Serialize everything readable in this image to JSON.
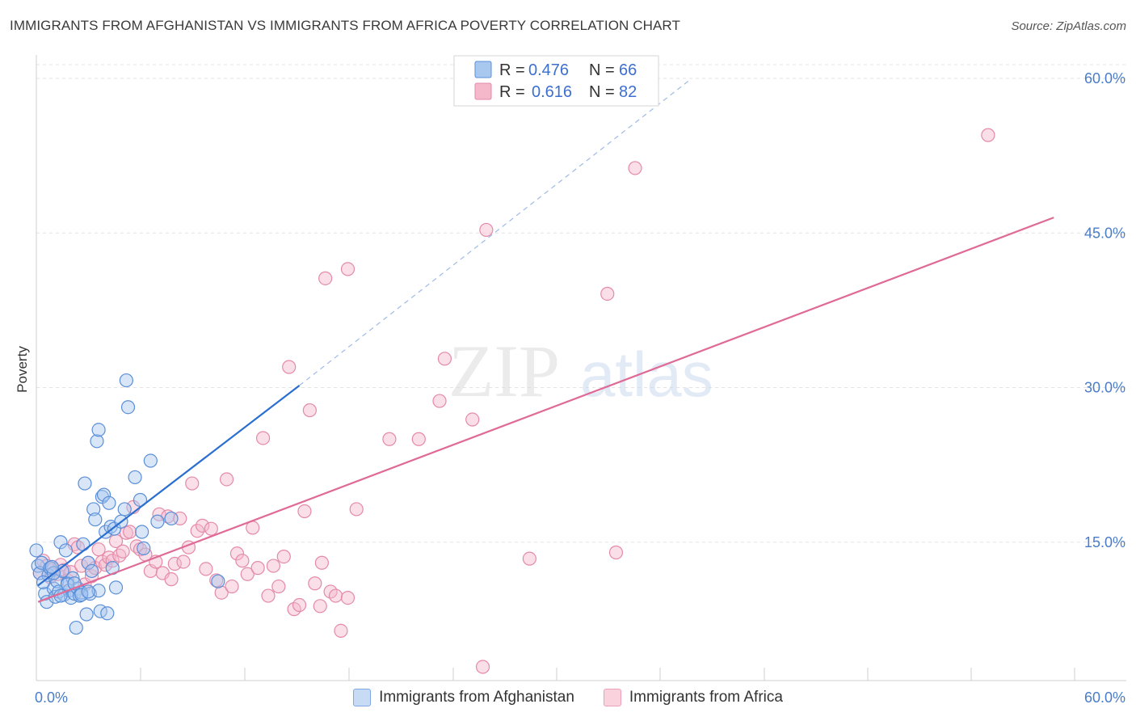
{
  "title": "IMMIGRANTS FROM AFGHANISTAN VS IMMIGRANTS FROM AFRICA POVERTY CORRELATION CHART",
  "source": "Source: ZipAtlas.com",
  "watermark": {
    "zip": "ZIP",
    "atlas": "atlas"
  },
  "colors": {
    "blue_fill": "#a8c8f0",
    "blue_stroke": "#5a8fd8",
    "blue_line": "#2a6fd0",
    "pink_fill": "#f5b8cb",
    "pink_stroke": "#e48aa8",
    "pink_line": "#e06a96",
    "grid": "#e3e3e3",
    "tick_text": "#4a7cc9"
  },
  "chart_data": {
    "type": "scatter",
    "title": "IMMIGRANTS FROM AFGHANISTAN VS IMMIGRANTS FROM AFRICA POVERTY CORRELATION CHART",
    "xlabel": "",
    "ylabel": "Poverty",
    "xlim": [
      0,
      60
    ],
    "ylim": [
      0,
      60
    ],
    "x_tick_labels": {
      "min": "0.0%",
      "max": "60.0%"
    },
    "y_tick_labels": [
      "60.0%",
      "45.0%",
      "30.0%",
      "15.0%"
    ],
    "y_ticks": [
      60,
      45,
      30,
      15
    ],
    "grid": true,
    "legend_stats": [
      {
        "r_label": "R =",
        "r_value": "0.476",
        "n_label": "N =",
        "n_value": "66"
      },
      {
        "r_label": "R =",
        "r_value": "0.616",
        "n_label": "N =",
        "n_value": "82"
      }
    ],
    "series": [
      {
        "name": "Immigrants from Afghanistan",
        "color": "#a8c8f0",
        "trend": {
          "x0": 0.1,
          "y0": 10.8,
          "x1": 15.2,
          "y1": 30.2,
          "dash_x1": 37.8,
          "dash_y1": 59.9
        },
        "points": [
          [
            0.0,
            14.2
          ],
          [
            0.1,
            12.7
          ],
          [
            0.2,
            12.0
          ],
          [
            0.3,
            13.0
          ],
          [
            0.5,
            10.0
          ],
          [
            0.6,
            9.2
          ],
          [
            0.7,
            11.8
          ],
          [
            0.8,
            12.5
          ],
          [
            1.0,
            10.5
          ],
          [
            1.1,
            9.7
          ],
          [
            1.2,
            11.2
          ],
          [
            1.3,
            10.2
          ],
          [
            1.4,
            15.0
          ],
          [
            1.5,
            12.2
          ],
          [
            1.6,
            9.9
          ],
          [
            1.7,
            14.2
          ],
          [
            1.8,
            11.0
          ],
          [
            1.9,
            10.3
          ],
          [
            2.0,
            9.6
          ],
          [
            2.1,
            11.5
          ],
          [
            2.2,
            10.0
          ],
          [
            2.3,
            6.7
          ],
          [
            2.4,
            10.5
          ],
          [
            2.5,
            9.8
          ],
          [
            2.6,
            10.1
          ],
          [
            2.7,
            14.8
          ],
          [
            2.8,
            20.7
          ],
          [
            2.9,
            8.0
          ],
          [
            3.0,
            13.0
          ],
          [
            3.1,
            10.0
          ],
          [
            3.2,
            12.2
          ],
          [
            3.3,
            18.2
          ],
          [
            3.4,
            17.2
          ],
          [
            3.5,
            24.8
          ],
          [
            3.6,
            10.3
          ],
          [
            3.7,
            8.3
          ],
          [
            3.8,
            19.4
          ],
          [
            3.9,
            19.6
          ],
          [
            4.0,
            16.0
          ],
          [
            4.1,
            8.1
          ],
          [
            4.2,
            18.8
          ],
          [
            4.3,
            16.5
          ],
          [
            4.4,
            12.5
          ],
          [
            4.5,
            16.3
          ],
          [
            4.6,
            10.6
          ],
          [
            4.9,
            17.0
          ],
          [
            5.1,
            18.2
          ],
          [
            5.2,
            30.7
          ],
          [
            5.3,
            28.1
          ],
          [
            5.7,
            21.3
          ],
          [
            6.0,
            19.1
          ],
          [
            6.1,
            16.0
          ],
          [
            6.2,
            14.4
          ],
          [
            6.6,
            22.9
          ],
          [
            7.0,
            17.0
          ],
          [
            7.8,
            17.3
          ],
          [
            10.5,
            11.2
          ],
          [
            1.0,
            12.0
          ],
          [
            1.8,
            10.9
          ],
          [
            2.6,
            9.9
          ],
          [
            1.4,
            9.8
          ],
          [
            3.6,
            25.9
          ],
          [
            3.0,
            10.2
          ],
          [
            0.4,
            11.1
          ],
          [
            0.9,
            12.6
          ],
          [
            2.2,
            11.0
          ]
        ]
      },
      {
        "name": "Immigrants from Africa",
        "color": "#f5b8cb",
        "trend": {
          "x0": 0.1,
          "y0": 9.2,
          "x1": 58.8,
          "y1": 46.5
        },
        "points": [
          [
            0.2,
            12.0
          ],
          [
            0.4,
            13.2
          ],
          [
            0.6,
            12.7
          ],
          [
            0.8,
            11.6
          ],
          [
            1.0,
            12.4
          ],
          [
            1.2,
            11.9
          ],
          [
            1.4,
            12.8
          ],
          [
            1.6,
            12.3
          ],
          [
            1.8,
            11.3
          ],
          [
            2.0,
            12.1
          ],
          [
            2.2,
            14.8
          ],
          [
            2.4,
            14.5
          ],
          [
            2.6,
            12.7
          ],
          [
            2.8,
            10.9
          ],
          [
            3.0,
            13.0
          ],
          [
            3.2,
            11.7
          ],
          [
            3.4,
            12.5
          ],
          [
            3.6,
            14.3
          ],
          [
            3.8,
            13.1
          ],
          [
            4.0,
            12.8
          ],
          [
            4.2,
            13.5
          ],
          [
            4.4,
            13.2
          ],
          [
            4.6,
            15.1
          ],
          [
            4.8,
            13.7
          ],
          [
            5.0,
            14.1
          ],
          [
            5.2,
            15.9
          ],
          [
            5.4,
            16.0
          ],
          [
            5.6,
            18.4
          ],
          [
            5.8,
            14.6
          ],
          [
            6.0,
            14.3
          ],
          [
            6.3,
            13.8
          ],
          [
            6.6,
            12.2
          ],
          [
            6.9,
            13.1
          ],
          [
            7.1,
            17.7
          ],
          [
            7.3,
            12.0
          ],
          [
            7.6,
            17.5
          ],
          [
            7.8,
            11.4
          ],
          [
            8.0,
            12.9
          ],
          [
            8.3,
            17.3
          ],
          [
            8.5,
            13.1
          ],
          [
            8.8,
            14.5
          ],
          [
            9.0,
            20.7
          ],
          [
            9.3,
            16.1
          ],
          [
            9.6,
            16.6
          ],
          [
            9.8,
            12.4
          ],
          [
            10.1,
            16.3
          ],
          [
            10.4,
            11.3
          ],
          [
            10.7,
            10.1
          ],
          [
            11.0,
            21.1
          ],
          [
            11.3,
            10.7
          ],
          [
            11.6,
            13.9
          ],
          [
            11.9,
            13.2
          ],
          [
            12.2,
            11.9
          ],
          [
            12.5,
            16.4
          ],
          [
            12.8,
            12.5
          ],
          [
            13.1,
            25.1
          ],
          [
            13.4,
            9.8
          ],
          [
            13.7,
            12.7
          ],
          [
            14.0,
            10.7
          ],
          [
            14.3,
            13.6
          ],
          [
            14.6,
            32.0
          ],
          [
            14.9,
            8.5
          ],
          [
            15.2,
            8.9
          ],
          [
            15.5,
            18.0
          ],
          [
            15.8,
            27.8
          ],
          [
            16.1,
            11.0
          ],
          [
            16.4,
            8.8
          ],
          [
            16.7,
            40.6
          ],
          [
            17.0,
            10.2
          ],
          [
            17.3,
            9.8
          ],
          [
            17.6,
            6.4
          ],
          [
            18.0,
            41.5
          ],
          [
            18.5,
            18.2
          ],
          [
            20.4,
            25.0
          ],
          [
            22.1,
            25.0
          ],
          [
            23.3,
            28.7
          ],
          [
            23.6,
            32.8
          ],
          [
            25.2,
            26.9
          ],
          [
            26.0,
            45.3
          ],
          [
            28.5,
            13.4
          ],
          [
            34.6,
            51.3
          ],
          [
            33.0,
            39.1
          ]
        ]
      }
    ]
  },
  "extra_pink_points": [
    [
      18.0,
      9.6
    ],
    [
      16.5,
      13.0
    ],
    [
      25.8,
      2.9
    ],
    [
      33.5,
      14.0
    ]
  ],
  "legend_bottom": [
    {
      "label": "Immigrants from Afghanistan"
    },
    {
      "label": "Immigrants from Africa"
    }
  ],
  "top_right_point": [
    55.0,
    54.5
  ]
}
